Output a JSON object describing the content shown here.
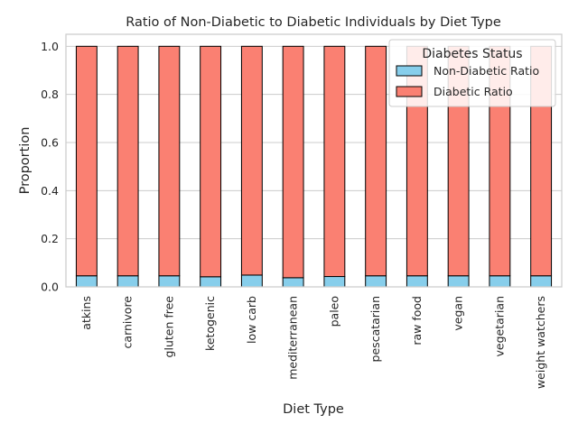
{
  "chart_data": {
    "type": "bar",
    "stacked": true,
    "title": "Ratio of Non-Diabetic to Diabetic Individuals by Diet Type",
    "xlabel": "Diet Type",
    "ylabel": "Proportion",
    "ylim": [
      0,
      1.05
    ],
    "yticks": [
      "0.0",
      "0.2",
      "0.4",
      "0.6",
      "0.8",
      "1.0"
    ],
    "grid": true,
    "categories": [
      "atkins",
      "carnivore",
      "gluten free",
      "ketogenic",
      "low carb",
      "mediterranean",
      "paleo",
      "pescatarian",
      "raw food",
      "vegan",
      "vegetarian",
      "weight watchers"
    ],
    "series": [
      {
        "name": "Non-Diabetic Ratio",
        "color": "#87ceeb",
        "values": [
          0.046,
          0.046,
          0.046,
          0.042,
          0.049,
          0.038,
          0.043,
          0.046,
          0.046,
          0.046,
          0.046,
          0.046
        ]
      },
      {
        "name": "Diabetic Ratio",
        "color": "#fa8072",
        "values": [
          0.954,
          0.954,
          0.954,
          0.958,
          0.951,
          0.962,
          0.957,
          0.954,
          0.954,
          0.954,
          0.954,
          0.954
        ]
      }
    ],
    "legend": {
      "title": "Diabetes Status",
      "placement": "top-right"
    }
  }
}
